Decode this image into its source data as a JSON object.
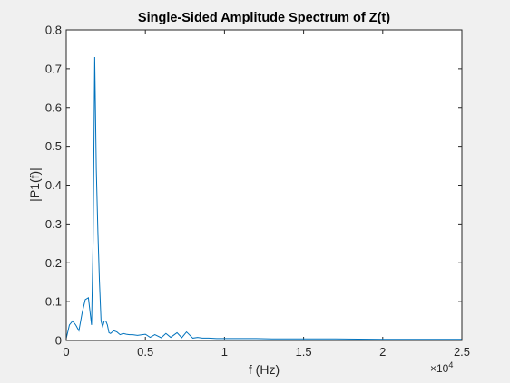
{
  "chart_data": {
    "type": "line",
    "title": "Single-Sided Amplitude Spectrum of Z(t)",
    "xlabel": "f (Hz)",
    "ylabel": "|P1(f)|",
    "xlim": [
      0,
      25000
    ],
    "ylim": [
      0,
      0.8
    ],
    "x_ticks": [
      0,
      5000,
      10000,
      15000,
      20000,
      25000
    ],
    "x_tick_labels": [
      "0",
      "0.5",
      "1",
      "1.5",
      "2",
      "2.5"
    ],
    "y_ticks": [
      0,
      0.1,
      0.2,
      0.3,
      0.4,
      0.5,
      0.6,
      0.7,
      0.8
    ],
    "y_tick_labels": [
      "0",
      "0.1",
      "0.2",
      "0.3",
      "0.4",
      "0.5",
      "0.6",
      "0.7",
      "0.8"
    ],
    "x_exponent_label": "×10",
    "x_exponent_power": "4",
    "grid": false,
    "colors": {
      "line": "#0072bd",
      "axes": "#262626",
      "plot_bg": "#ffffff",
      "figure_bg": "#f0f0f0"
    },
    "series": [
      {
        "name": "P1",
        "x": [
          0,
          200,
          400,
          600,
          800,
          1000,
          1200,
          1400,
          1600,
          1700,
          1800,
          1900,
          2000,
          2100,
          2200,
          2300,
          2400,
          2500,
          2600,
          2700,
          2800,
          3000,
          3200,
          3400,
          3600,
          3800,
          4000,
          4200,
          4500,
          5000,
          5300,
          5600,
          6000,
          6300,
          6600,
          7000,
          7300,
          7600,
          8000,
          8300,
          8600,
          9000,
          9500,
          10000,
          11000,
          12000,
          13000,
          14000,
          15000,
          17000,
          20000,
          22000,
          25000
        ],
        "y": [
          0.005,
          0.04,
          0.05,
          0.04,
          0.025,
          0.07,
          0.105,
          0.11,
          0.04,
          0.26,
          0.73,
          0.44,
          0.28,
          0.15,
          0.05,
          0.035,
          0.05,
          0.05,
          0.04,
          0.02,
          0.018,
          0.025,
          0.022,
          0.015,
          0.018,
          0.016,
          0.015,
          0.015,
          0.013,
          0.016,
          0.008,
          0.015,
          0.007,
          0.018,
          0.008,
          0.02,
          0.007,
          0.022,
          0.006,
          0.008,
          0.006,
          0.006,
          0.005,
          0.005,
          0.005,
          0.005,
          0.004,
          0.004,
          0.004,
          0.004,
          0.003,
          0.003,
          0.003
        ]
      }
    ]
  }
}
